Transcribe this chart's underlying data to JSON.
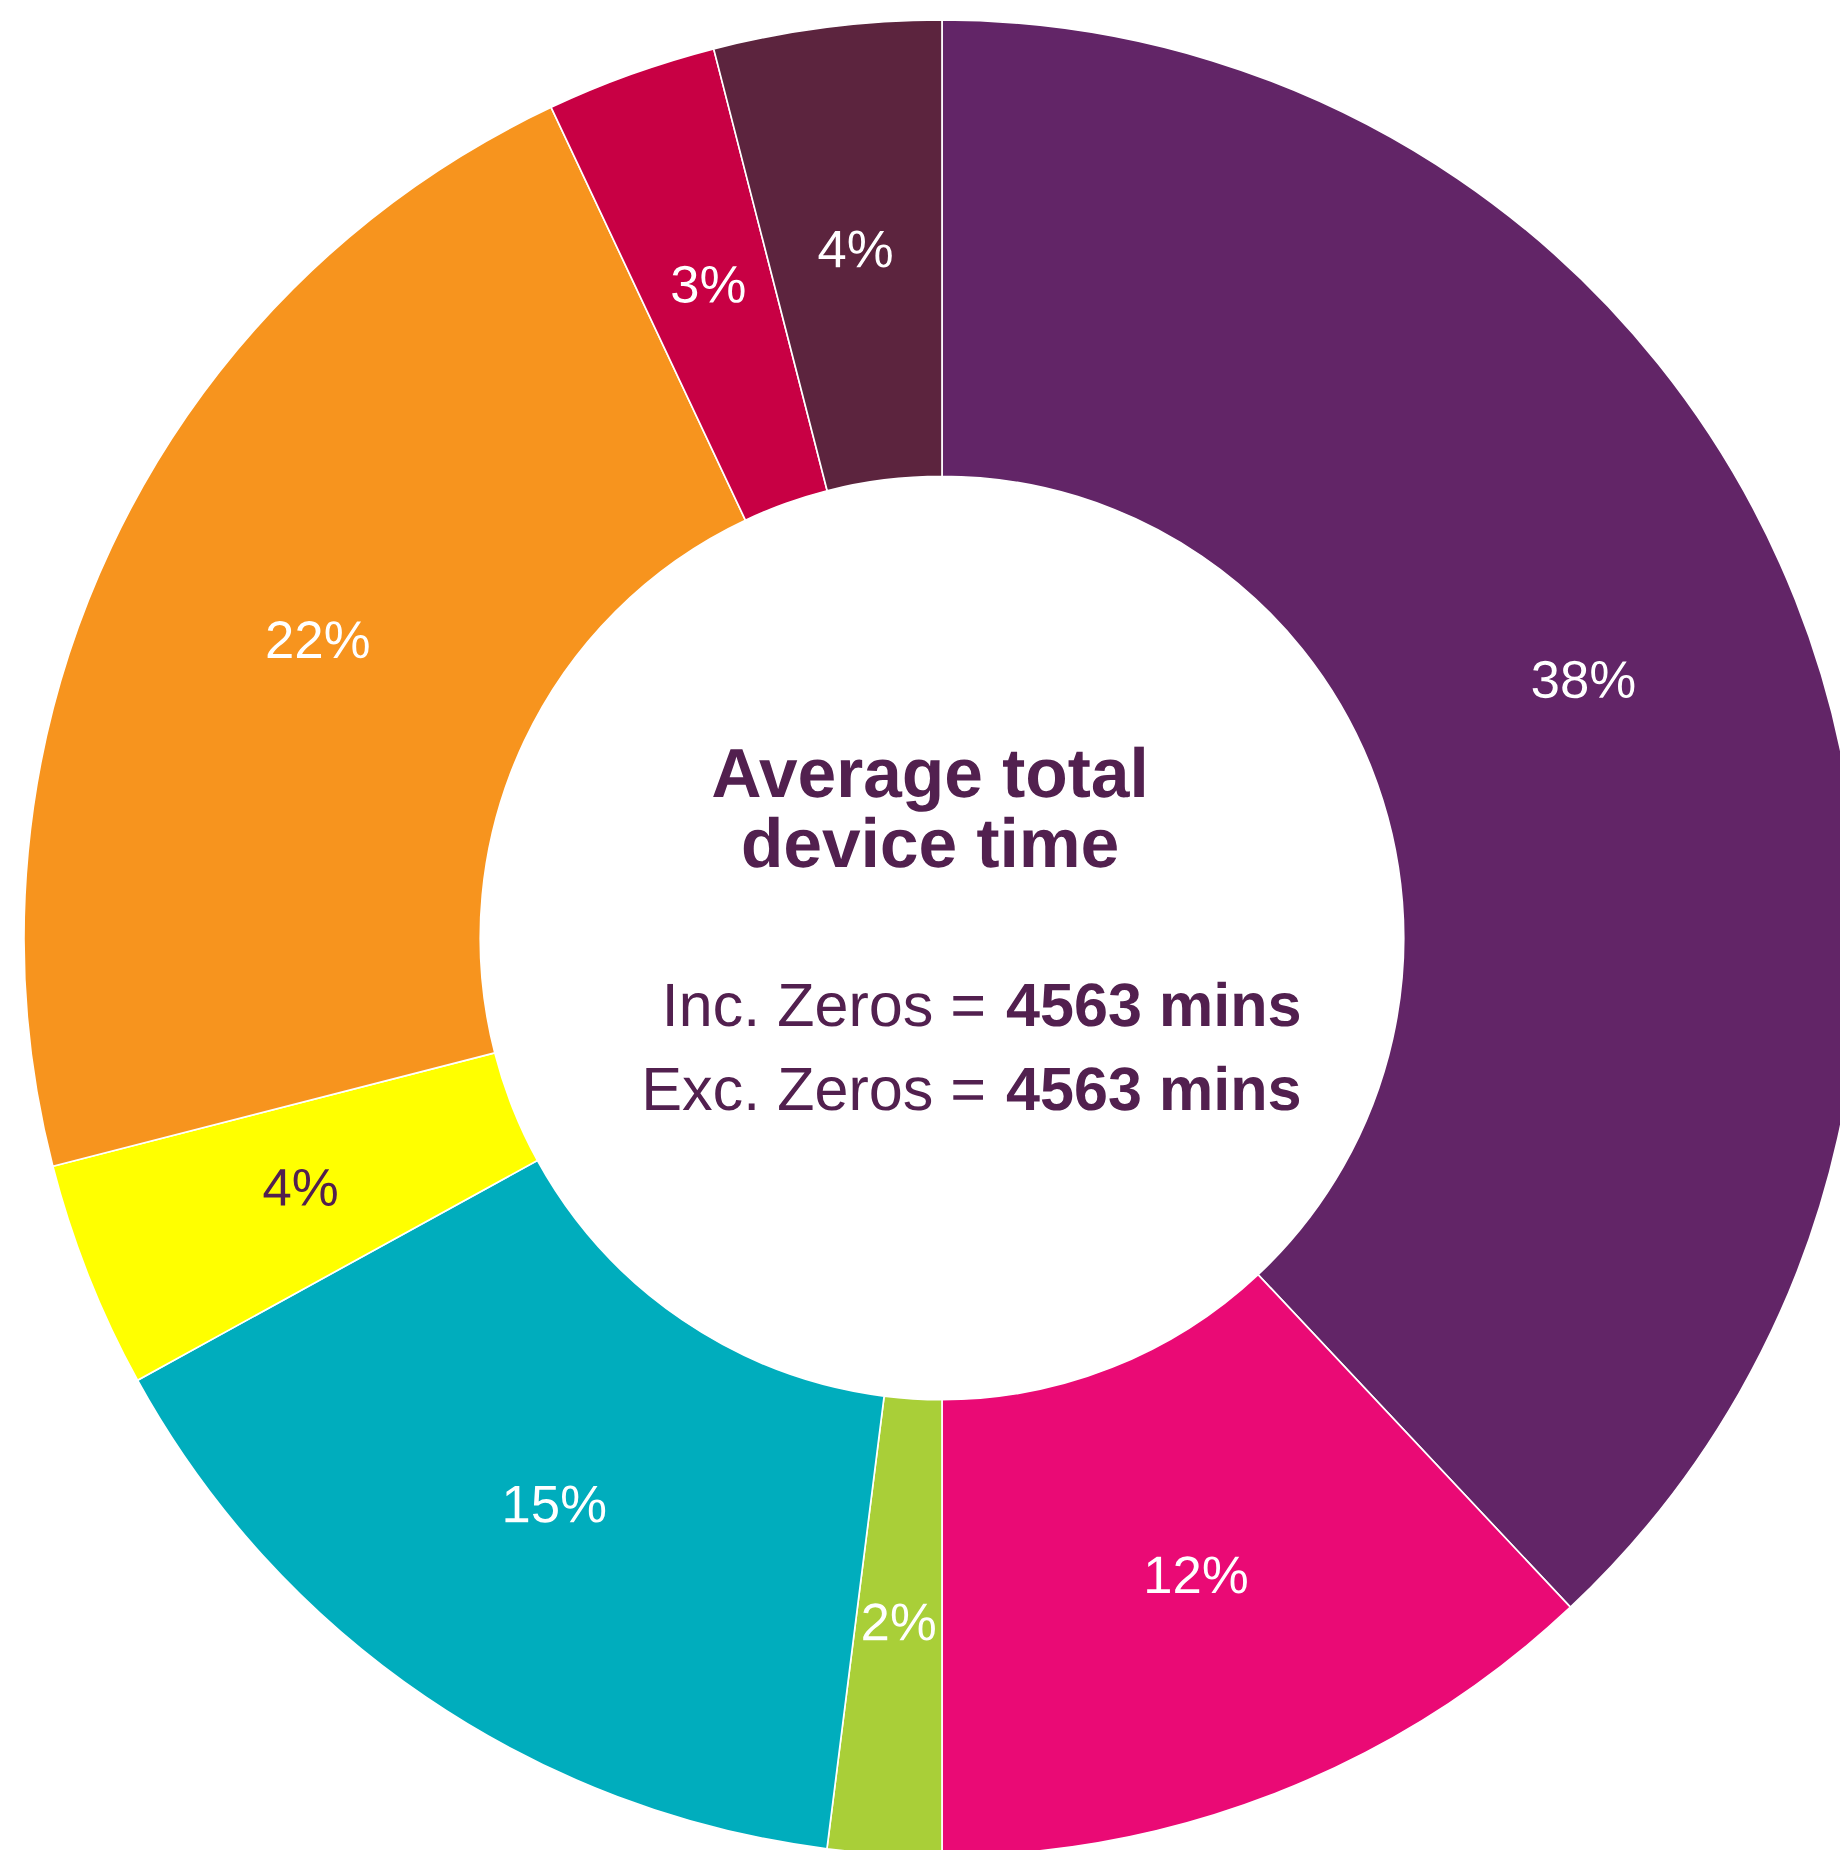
{
  "chart_data": {
    "type": "donut",
    "title": "Average total\ndevice time",
    "categories": [
      null,
      null,
      null,
      null,
      null,
      null,
      null,
      null
    ],
    "values": [
      38,
      12,
      2,
      15,
      4,
      22,
      3,
      4
    ],
    "colors": [
      "#622567",
      "#ea0a75",
      "#a9cf38",
      "#00adbd",
      "#ffff00",
      "#f7941e",
      "#c80044",
      "#5c243e"
    ],
    "value_labels": [
      "38%",
      "12%",
      "2%",
      "15%",
      "4%",
      "22%",
      "3%",
      "4%"
    ],
    "annotations": [
      "Inc. Zeros =",
      "4563 mins",
      "Exc. Zeros =",
      "4563 mins"
    ]
  }
}
